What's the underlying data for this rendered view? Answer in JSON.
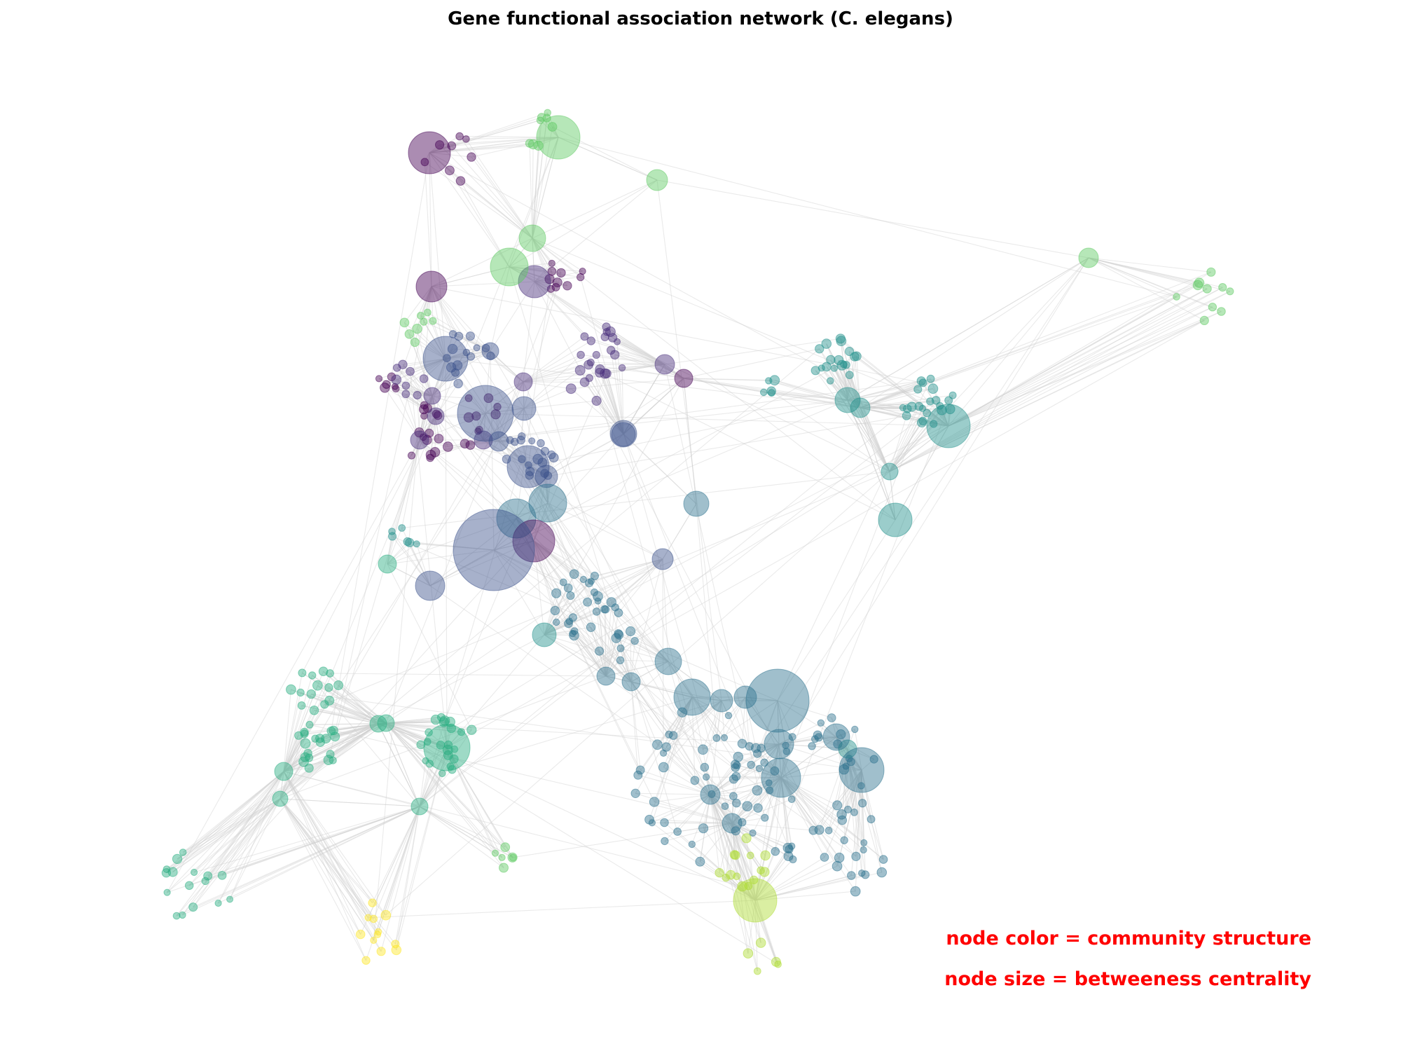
{
  "title": "Gene functional association network (C. elegans)",
  "annotations": {
    "color_legend": "node color = community structure",
    "size_legend": "node size = betweeness centrality"
  },
  "colors": {
    "annotation_text": "#ff0000",
    "edge": "#d0d0d0",
    "communities": {
      "c0": "#440154",
      "c1": "#472d7b",
      "c2": "#3b528b",
      "c3": "#2c728e",
      "c4": "#21918c",
      "c5": "#28ae80",
      "c6": "#5ec962",
      "c7": "#addc30",
      "c8": "#fde725"
    }
  }
}
